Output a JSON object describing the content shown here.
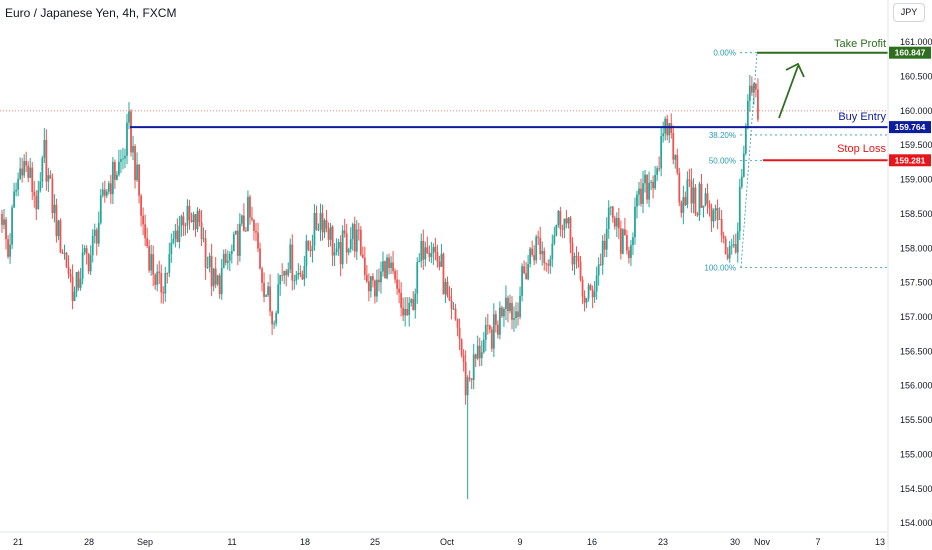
{
  "header": {
    "title": "Euro / Japanese Yen, 4h, FXCM",
    "currency_button": "JPY"
  },
  "colors": {
    "up": "#26a69a",
    "down": "#ef5350",
    "entry": "#0d1d9c",
    "take_profit": "#2e6e1e",
    "stop_loss": "#e4161b",
    "fib": "#2a9bb0"
  },
  "chart_data": {
    "type": "candlestick",
    "title": "Euro / Japanese Yen, 4h, FXCM",
    "ylim": [
      153.9,
      161.25
    ],
    "y_ticks": [
      "161.000",
      "160.500",
      "160.000",
      "159.500",
      "159.000",
      "158.500",
      "158.000",
      "157.500",
      "157.000",
      "156.500",
      "156.000",
      "155.500",
      "155.000",
      "154.500",
      "154.000"
    ],
    "x_ticks": [
      "21",
      "28",
      "Sep",
      "11",
      "18",
      "25",
      "Oct",
      "9",
      "16",
      "23",
      "30",
      "Nov",
      "7",
      "13"
    ],
    "current_price_line": 160.0,
    "levels": {
      "take_profit": {
        "label": "Take Profit",
        "value": "160.847"
      },
      "buy_entry": {
        "label": "Buy Entry",
        "value": "159.764"
      },
      "stop_loss": {
        "label": "Stop Loss",
        "value": "159.281"
      }
    },
    "fib_levels": [
      {
        "label": "0.00%",
        "value": 160.847
      },
      {
        "label": "38.20%",
        "value": 159.65
      },
      {
        "label": "50.00%",
        "value": 159.28
      },
      {
        "label": "100.00%",
        "value": 157.72
      }
    ],
    "price_path": [
      {
        "t": 0,
        "p": 158.5
      },
      {
        "t": 3,
        "p": 157.9
      },
      {
        "t": 6,
        "p": 158.7
      },
      {
        "t": 10,
        "p": 159.3
      },
      {
        "t": 14,
        "p": 159.0
      },
      {
        "t": 18,
        "p": 158.6
      },
      {
        "t": 21,
        "p": 159.4
      },
      {
        "t": 24,
        "p": 158.8
      },
      {
        "t": 28,
        "p": 158.2
      },
      {
        "t": 32,
        "p": 157.8
      },
      {
        "t": 36,
        "p": 157.3
      },
      {
        "t": 40,
        "p": 157.8
      },
      {
        "t": 44,
        "p": 157.9
      },
      {
        "t": 48,
        "p": 158.4
      },
      {
        "t": 52,
        "p": 158.9
      },
      {
        "t": 56,
        "p": 159.1
      },
      {
        "t": 60,
        "p": 159.3
      },
      {
        "t": 63,
        "p": 159.764
      },
      {
        "t": 66,
        "p": 159.2
      },
      {
        "t": 70,
        "p": 158.3
      },
      {
        "t": 74,
        "p": 157.8
      },
      {
        "t": 78,
        "p": 157.4
      },
      {
        "t": 82,
        "p": 157.7
      },
      {
        "t": 86,
        "p": 158.2
      },
      {
        "t": 90,
        "p": 158.5
      },
      {
        "t": 94,
        "p": 158.3
      },
      {
        "t": 98,
        "p": 158.4
      },
      {
        "t": 102,
        "p": 157.8
      },
      {
        "t": 106,
        "p": 157.4
      },
      {
        "t": 110,
        "p": 157.7
      },
      {
        "t": 114,
        "p": 157.9
      },
      {
        "t": 118,
        "p": 158.2
      },
      {
        "t": 122,
        "p": 158.5
      },
      {
        "t": 126,
        "p": 158.1
      },
      {
        "t": 130,
        "p": 157.5
      },
      {
        "t": 134,
        "p": 157.0
      },
      {
        "t": 138,
        "p": 157.6
      },
      {
        "t": 142,
        "p": 157.9
      },
      {
        "t": 146,
        "p": 157.6
      },
      {
        "t": 150,
        "p": 157.8
      },
      {
        "t": 154,
        "p": 158.2
      },
      {
        "t": 158,
        "p": 158.5
      },
      {
        "t": 162,
        "p": 158.3
      },
      {
        "t": 166,
        "p": 157.8
      },
      {
        "t": 170,
        "p": 158.1
      },
      {
        "t": 174,
        "p": 158.2
      },
      {
        "t": 178,
        "p": 158.0
      },
      {
        "t": 182,
        "p": 157.5
      },
      {
        "t": 186,
        "p": 157.4
      },
      {
        "t": 190,
        "p": 157.8
      },
      {
        "t": 194,
        "p": 157.5
      },
      {
        "t": 198,
        "p": 157.1
      },
      {
        "t": 202,
        "p": 157.0
      },
      {
        "t": 206,
        "p": 157.6
      },
      {
        "t": 210,
        "p": 158.2
      },
      {
        "t": 214,
        "p": 158.0
      },
      {
        "t": 218,
        "p": 157.7
      },
      {
        "t": 222,
        "p": 157.0
      },
      {
        "t": 226,
        "p": 156.9
      },
      {
        "t": 230,
        "p": 156.0
      },
      {
        "t": 234,
        "p": 156.3
      },
      {
        "t": 238,
        "p": 156.6
      },
      {
        "t": 242,
        "p": 156.7
      },
      {
        "t": 246,
        "p": 156.9
      },
      {
        "t": 250,
        "p": 157.4
      },
      {
        "t": 254,
        "p": 157.0
      },
      {
        "t": 258,
        "p": 157.5
      },
      {
        "t": 262,
        "p": 157.9
      },
      {
        "t": 266,
        "p": 158.1
      },
      {
        "t": 270,
        "p": 157.8
      },
      {
        "t": 274,
        "p": 158.3
      },
      {
        "t": 278,
        "p": 158.5
      },
      {
        "t": 282,
        "p": 158.1
      },
      {
        "t": 286,
        "p": 157.6
      },
      {
        "t": 290,
        "p": 157.2
      },
      {
        "t": 294,
        "p": 157.5
      },
      {
        "t": 298,
        "p": 158.0
      },
      {
        "t": 302,
        "p": 158.5
      },
      {
        "t": 306,
        "p": 158.2
      },
      {
        "t": 310,
        "p": 157.9
      },
      {
        "t": 314,
        "p": 158.5
      },
      {
        "t": 318,
        "p": 158.8
      },
      {
        "t": 322,
        "p": 159.0
      },
      {
        "t": 326,
        "p": 159.3
      },
      {
        "t": 330,
        "p": 159.764
      },
      {
        "t": 332,
        "p": 159.7
      },
      {
        "t": 334,
        "p": 159.2
      },
      {
        "t": 337,
        "p": 158.7
      },
      {
        "t": 340,
        "p": 158.9
      },
      {
        "t": 344,
        "p": 158.6
      },
      {
        "t": 348,
        "p": 158.8
      },
      {
        "t": 352,
        "p": 158.4
      },
      {
        "t": 356,
        "p": 158.5
      },
      {
        "t": 359,
        "p": 158.0
      },
      {
        "t": 362,
        "p": 157.9
      },
      {
        "t": 365,
        "p": 158.3
      },
      {
        "t": 367,
        "p": 159.0
      },
      {
        "t": 369,
        "p": 159.6
      },
      {
        "t": 371,
        "p": 160.3
      },
      {
        "t": 373,
        "p": 160.2
      },
      {
        "t": 375,
        "p": 159.95
      }
    ],
    "low_wick": {
      "t": 231,
      "low": 154.35
    }
  }
}
